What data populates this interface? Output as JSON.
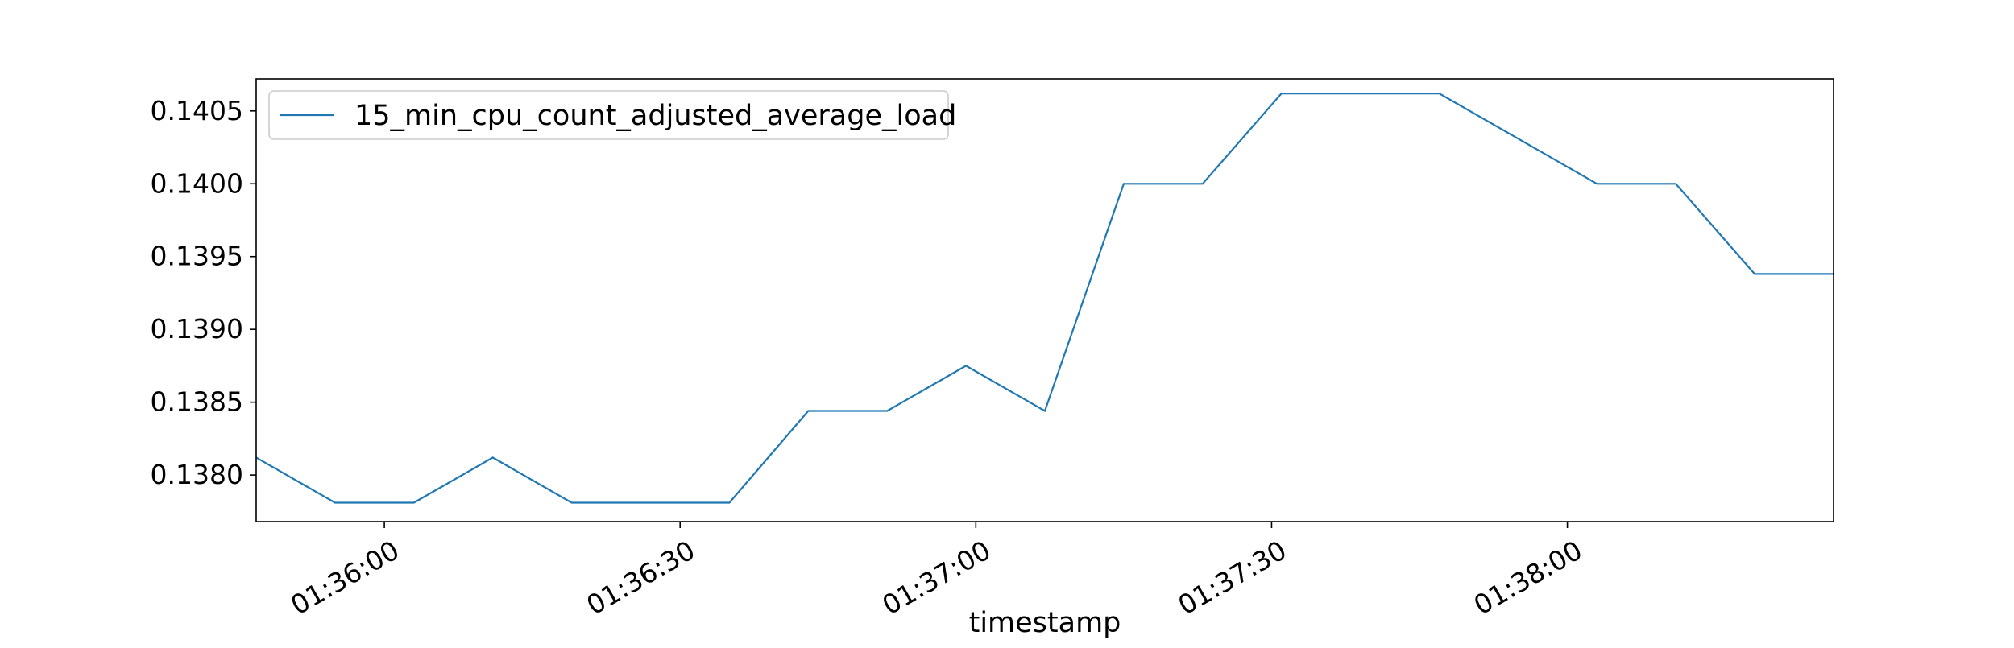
{
  "chart_data": {
    "type": "line",
    "title": "",
    "xlabel": "timestamp",
    "ylabel": "",
    "x_tick_labels": [
      "01:36:00",
      "01:36:30",
      "01:37:00",
      "01:37:30",
      "01:38:00"
    ],
    "y_tick_labels": [
      "0.1380",
      "0.1385",
      "0.1390",
      "0.1395",
      "0.1400",
      "0.1405"
    ],
    "x_range": [
      "01:35:47",
      "01:38:27"
    ],
    "ylim": [
      0.13768,
      0.14072
    ],
    "grid": false,
    "legend": {
      "position": "top-left"
    },
    "series": [
      {
        "name": "15_min_cpu_count_adjusted_average_load",
        "color": "#1f77b4",
        "x": [
          "01:35:47",
          "01:35:55",
          "01:36:03",
          "01:36:11",
          "01:36:19",
          "01:36:27",
          "01:36:35",
          "01:36:43",
          "01:36:51",
          "01:36:59",
          "01:37:07",
          "01:37:15",
          "01:37:23",
          "01:37:31",
          "01:37:39",
          "01:37:47",
          "01:37:55",
          "01:38:03",
          "01:38:11",
          "01:38:19",
          "01:38:27"
        ],
        "values": [
          0.13812,
          0.13781,
          0.13781,
          0.13812,
          0.13781,
          0.13781,
          0.13781,
          0.13844,
          0.13844,
          0.13875,
          0.13844,
          0.14,
          0.14,
          0.14062,
          0.14062,
          0.14062,
          0.14031,
          0.14,
          0.14,
          0.13938,
          0.13938
        ]
      }
    ]
  }
}
